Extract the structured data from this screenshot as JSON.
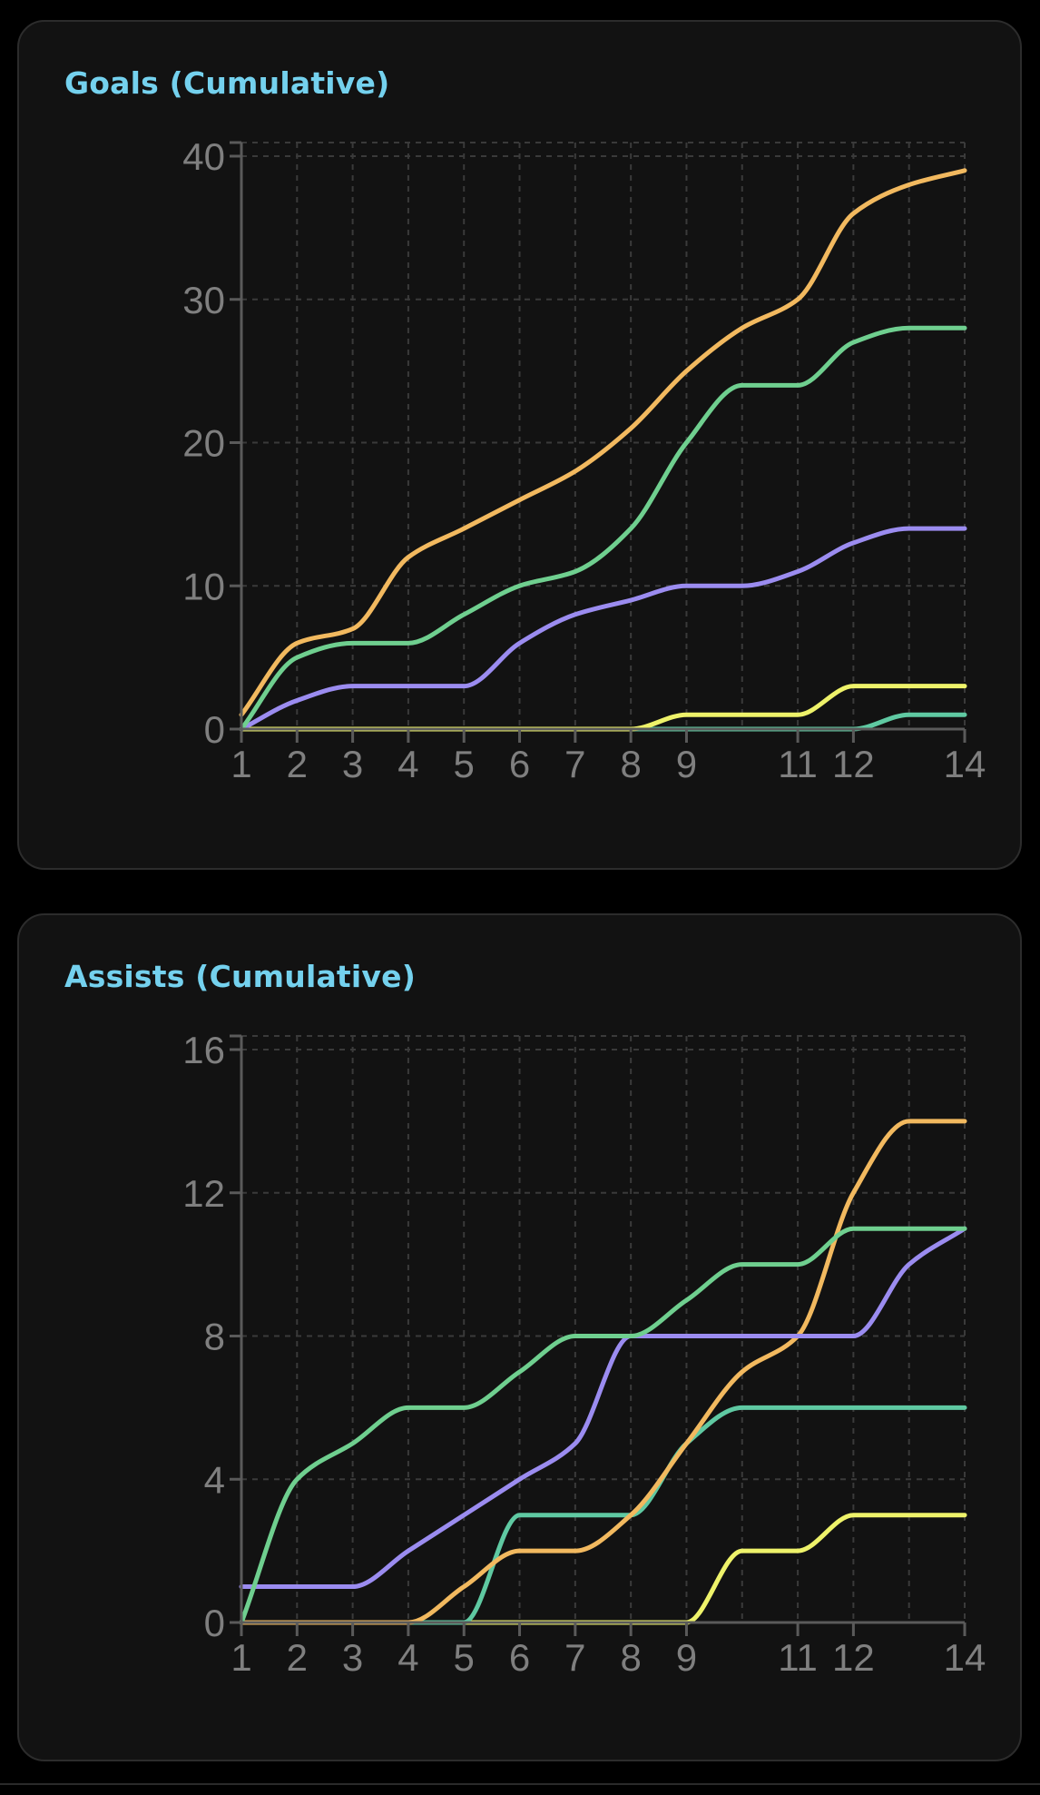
{
  "chart_data": [
    {
      "type": "line",
      "title": "Goals (Cumulative)",
      "xlabel": "",
      "ylabel": "",
      "x": [
        1,
        2,
        3,
        4,
        5,
        6,
        7,
        8,
        9,
        10,
        11,
        12,
        13,
        14
      ],
      "x_ticks": [
        1,
        2,
        3,
        4,
        5,
        6,
        7,
        8,
        9,
        11,
        12,
        14
      ],
      "xlim": [
        1,
        14
      ],
      "y_ticks": [
        0,
        10,
        20,
        30,
        40
      ],
      "ylim": [
        0,
        40
      ],
      "grid": true,
      "series": [
        {
          "color": "#f2b95f",
          "values": [
            1,
            6,
            7,
            12,
            14,
            16,
            18,
            21,
            25,
            28,
            30,
            36,
            38,
            39
          ]
        },
        {
          "color": "#6fcf8f",
          "values": [
            0,
            5,
            6,
            6,
            8,
            10,
            11,
            14,
            20,
            24,
            24,
            27,
            28,
            28
          ]
        },
        {
          "color": "#9b8cf0",
          "values": [
            0,
            2,
            3,
            3,
            3,
            6,
            8,
            9,
            10,
            10,
            11,
            13,
            14,
            14
          ]
        },
        {
          "color": "#eef26a",
          "values": [
            0,
            0,
            0,
            0,
            0,
            0,
            0,
            0,
            1,
            1,
            1,
            3,
            3,
            3
          ]
        },
        {
          "color": "#5fc9a2",
          "values": [
            0,
            0,
            0,
            0,
            0,
            0,
            0,
            0,
            0,
            0,
            0,
            0,
            1,
            1
          ]
        }
      ]
    },
    {
      "type": "line",
      "title": "Assists (Cumulative)",
      "xlabel": "",
      "ylabel": "",
      "x": [
        1,
        2,
        3,
        4,
        5,
        6,
        7,
        8,
        9,
        10,
        11,
        12,
        13,
        14
      ],
      "x_ticks": [
        1,
        2,
        3,
        4,
        5,
        6,
        7,
        8,
        9,
        11,
        12,
        14
      ],
      "xlim": [
        1,
        14
      ],
      "y_ticks": [
        0,
        4,
        8,
        12,
        16
      ],
      "ylim": [
        0,
        16
      ],
      "grid": true,
      "series": [
        {
          "color": "#6fcf8f",
          "values": [
            0,
            4,
            5,
            6,
            6,
            7,
            8,
            8,
            9,
            10,
            10,
            11,
            11,
            11
          ]
        },
        {
          "color": "#9b8cf0",
          "values": [
            1,
            1,
            1,
            2,
            3,
            4,
            5,
            8,
            8,
            8,
            8,
            8,
            10,
            11
          ]
        },
        {
          "color": "#f2b95f",
          "values": [
            0,
            0,
            0,
            0,
            1,
            2,
            2,
            3,
            5,
            7,
            8,
            12,
            14,
            14
          ]
        },
        {
          "color": "#5fc9a2",
          "values": [
            0,
            0,
            0,
            0,
            0,
            3,
            3,
            3,
            5,
            6,
            6,
            6,
            6,
            6
          ]
        },
        {
          "color": "#eef26a",
          "values": [
            0,
            0,
            0,
            0,
            0,
            0,
            0,
            0,
            0,
            2,
            2,
            3,
            3,
            3
          ]
        }
      ]
    }
  ]
}
